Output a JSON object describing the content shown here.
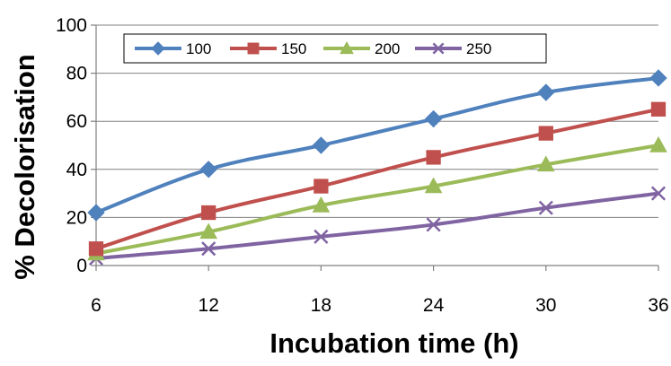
{
  "chart_data": {
    "type": "line",
    "title": "",
    "xlabel": "Incubation time (h)",
    "ylabel": "% Decolorisation",
    "x": [
      6,
      12,
      18,
      24,
      30,
      36
    ],
    "x_tick_labels": [
      "6",
      "12",
      "18",
      "24",
      "30",
      "36"
    ],
    "ylim": [
      0,
      100
    ],
    "y_ticks": [
      0,
      20,
      40,
      60,
      80,
      100
    ],
    "y_tick_labels": [
      "0",
      "20",
      "40",
      "60",
      "80",
      "100"
    ],
    "grid": "horizontal",
    "legend_position": "top-left",
    "series": [
      {
        "name": "100",
        "values": [
          22,
          40,
          50,
          61,
          72,
          78
        ],
        "color": "#4F81BD",
        "marker": "diamond"
      },
      {
        "name": "150",
        "values": [
          7,
          22,
          33,
          45,
          55,
          65
        ],
        "color": "#C0504D",
        "marker": "square"
      },
      {
        "name": "200",
        "values": [
          5,
          14,
          25,
          33,
          42,
          50
        ],
        "color": "#9BBB59",
        "marker": "triangle"
      },
      {
        "name": "250",
        "values": [
          3,
          7,
          12,
          17,
          24,
          30
        ],
        "color": "#8064A2",
        "marker": "x"
      }
    ]
  }
}
